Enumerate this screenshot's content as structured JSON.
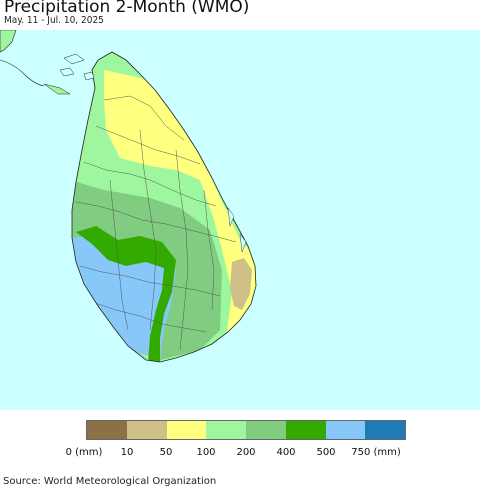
{
  "title": "Precipitation 2-Month (WMO)",
  "subtitle": "May. 11 - Jul. 10, 2025",
  "legend": {
    "colors": [
      "#8c7148",
      "#cfc08a",
      "#ffff80",
      "#9ef79e",
      "#80cc80",
      "#33aa00",
      "#88c8f8",
      "#1e7bb8"
    ],
    "labels": [
      "0 (mm)",
      "10",
      "50",
      "100",
      "200",
      "400",
      "500",
      "750 (mm)"
    ]
  },
  "source": "Source: World Meteorological Organization"
}
